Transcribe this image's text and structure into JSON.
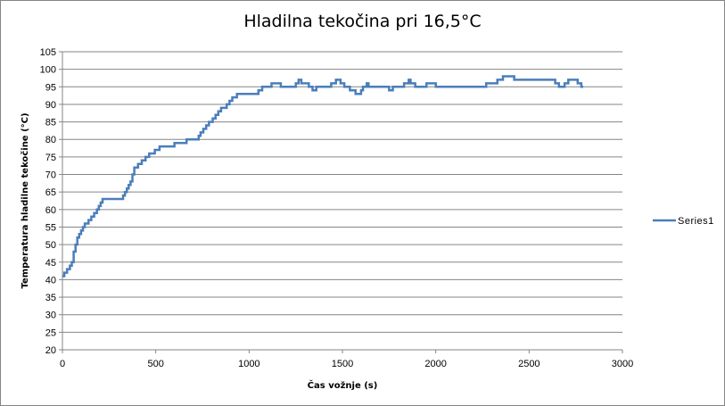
{
  "chart_data": {
    "type": "line",
    "title": "Hladilna tekočina pri 16,5°C",
    "xlabel": "Čas vožnje (s)",
    "ylabel": "Temperatura hladilne tekočine (°C)",
    "xlim": [
      0,
      3000
    ],
    "ylim": [
      20,
      105
    ],
    "x_ticks": [
      0,
      500,
      1000,
      1500,
      2000,
      2500,
      3000
    ],
    "y_ticks": [
      20,
      25,
      30,
      35,
      40,
      45,
      50,
      55,
      60,
      65,
      70,
      75,
      80,
      85,
      90,
      95,
      100,
      105
    ],
    "grid": "horizontal",
    "legend_position": "right",
    "colors": {
      "series": "#4a7ebb",
      "grid": "#868686"
    },
    "series": [
      {
        "name": "Series1",
        "step": true,
        "points": [
          [
            0,
            41
          ],
          [
            10,
            42
          ],
          [
            25,
            43
          ],
          [
            40,
            44
          ],
          [
            50,
            45
          ],
          [
            60,
            48
          ],
          [
            70,
            50
          ],
          [
            80,
            52
          ],
          [
            90,
            53
          ],
          [
            100,
            54
          ],
          [
            110,
            55
          ],
          [
            120,
            56
          ],
          [
            140,
            57
          ],
          [
            155,
            58
          ],
          [
            170,
            59
          ],
          [
            185,
            60
          ],
          [
            195,
            61
          ],
          [
            205,
            62
          ],
          [
            215,
            63
          ],
          [
            325,
            64
          ],
          [
            335,
            65
          ],
          [
            345,
            66
          ],
          [
            355,
            67
          ],
          [
            365,
            68
          ],
          [
            375,
            70
          ],
          [
            385,
            72
          ],
          [
            405,
            73
          ],
          [
            425,
            74
          ],
          [
            445,
            75
          ],
          [
            465,
            76
          ],
          [
            495,
            77
          ],
          [
            520,
            78
          ],
          [
            600,
            79
          ],
          [
            665,
            80
          ],
          [
            730,
            81
          ],
          [
            740,
            82
          ],
          [
            755,
            83
          ],
          [
            770,
            84
          ],
          [
            785,
            85
          ],
          [
            805,
            86
          ],
          [
            820,
            87
          ],
          [
            835,
            88
          ],
          [
            850,
            89
          ],
          [
            880,
            90
          ],
          [
            895,
            91
          ],
          [
            910,
            92
          ],
          [
            935,
            93
          ],
          [
            1050,
            94
          ],
          [
            1070,
            95
          ],
          [
            1120,
            96
          ],
          [
            1170,
            95
          ],
          [
            1250,
            96
          ],
          [
            1265,
            97
          ],
          [
            1280,
            96
          ],
          [
            1320,
            95
          ],
          [
            1340,
            94
          ],
          [
            1360,
            95
          ],
          [
            1440,
            96
          ],
          [
            1465,
            97
          ],
          [
            1490,
            96
          ],
          [
            1510,
            95
          ],
          [
            1540,
            94
          ],
          [
            1570,
            93
          ],
          [
            1600,
            94
          ],
          [
            1610,
            95
          ],
          [
            1630,
            96
          ],
          [
            1640,
            95
          ],
          [
            1750,
            94
          ],
          [
            1770,
            95
          ],
          [
            1830,
            96
          ],
          [
            1855,
            97
          ],
          [
            1865,
            96
          ],
          [
            1890,
            95
          ],
          [
            1950,
            96
          ],
          [
            2000,
            95
          ],
          [
            2270,
            96
          ],
          [
            2330,
            97
          ],
          [
            2360,
            98
          ],
          [
            2420,
            97
          ],
          [
            2640,
            96
          ],
          [
            2660,
            95
          ],
          [
            2690,
            96
          ],
          [
            2710,
            97
          ],
          [
            2760,
            96
          ],
          [
            2780,
            95
          ],
          [
            2790,
            95
          ]
        ]
      }
    ]
  }
}
